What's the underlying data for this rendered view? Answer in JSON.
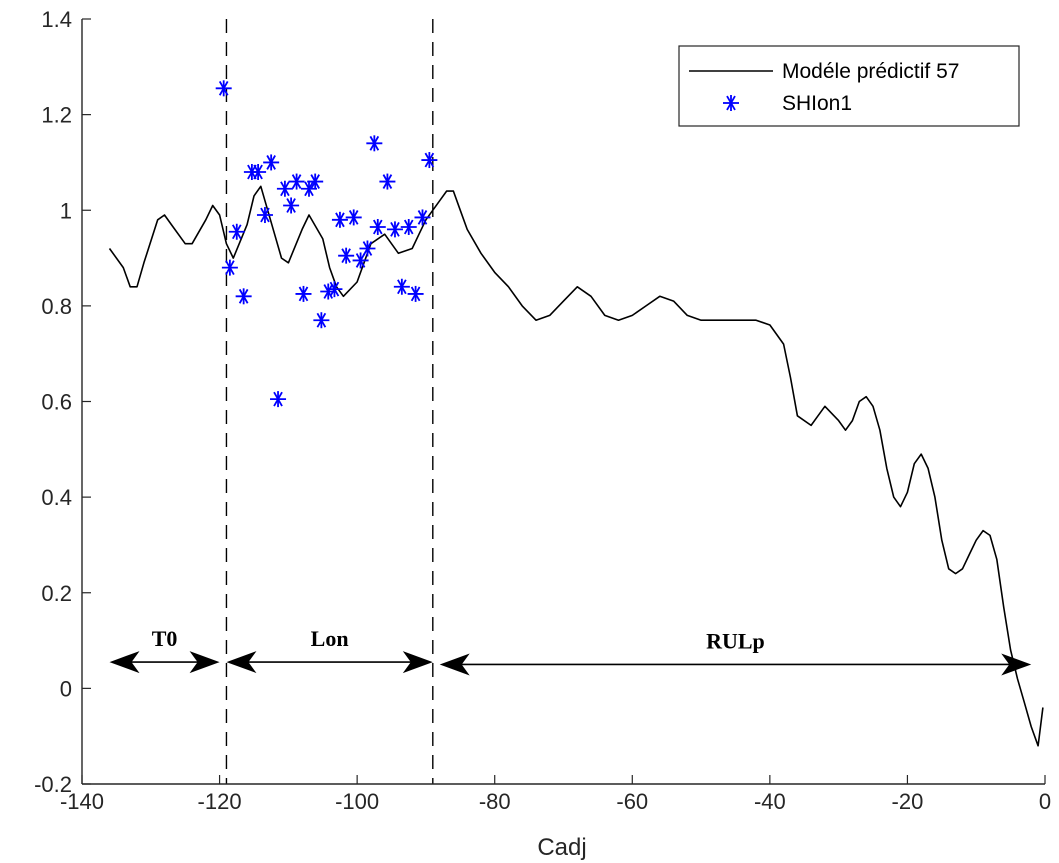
{
  "chart_data": {
    "type": "line",
    "xlabel": "Cadj",
    "ylabel": "",
    "xlim": [
      -140,
      0
    ],
    "ylim": [
      -0.2,
      1.4
    ],
    "x_ticks": [
      "-140",
      "-120",
      "-100",
      "-80",
      "-60",
      "-40",
      "-20",
      "0"
    ],
    "y_ticks": [
      "-0.2",
      "0",
      "0.2",
      "0.4",
      "0.6",
      "0.8",
      "1",
      "1.2",
      "1.4"
    ],
    "grid": false,
    "legend_position": "top-right",
    "series": [
      {
        "name": "Modéle prédictif 57",
        "style": "line",
        "color": "#000000",
        "x": [
          -136,
          -134,
          -133,
          -132,
          -131,
          -129,
          -128,
          -127,
          -125,
          -124,
          -122,
          -121,
          -120,
          -119,
          -118,
          -116,
          -115,
          -114,
          -112,
          -111,
          -110,
          -108,
          -107,
          -105,
          -104,
          -103,
          -102,
          -100,
          -99,
          -98,
          -96,
          -95,
          -94,
          -92,
          -91,
          -90,
          -88,
          -87,
          -86,
          -85,
          -84,
          -82,
          -80,
          -78,
          -76,
          -74,
          -72,
          -70,
          -68,
          -66,
          -64,
          -62,
          -60,
          -58,
          -56,
          -54,
          -52,
          -50,
          -48,
          -46,
          -44,
          -42,
          -40,
          -38,
          -37,
          -36,
          -34,
          -33,
          -32,
          -30,
          -29,
          -28,
          -27,
          -26,
          -25,
          -24,
          -23,
          -22,
          -21,
          -20,
          -19,
          -18,
          -17,
          -16,
          -15,
          -14,
          -13,
          -12,
          -11,
          -10,
          -9,
          -8,
          -7,
          -6,
          -5,
          -4,
          -3,
          -2,
          -1,
          -0.3
        ],
        "y": [
          0.92,
          0.88,
          0.84,
          0.84,
          0.89,
          0.98,
          0.99,
          0.97,
          0.93,
          0.93,
          0.98,
          1.01,
          0.99,
          0.93,
          0.9,
          0.97,
          1.03,
          1.05,
          0.95,
          0.9,
          0.89,
          0.96,
          0.99,
          0.94,
          0.88,
          0.84,
          0.82,
          0.85,
          0.89,
          0.93,
          0.95,
          0.93,
          0.91,
          0.92,
          0.95,
          0.98,
          1.02,
          1.04,
          1.04,
          1.0,
          0.96,
          0.91,
          0.87,
          0.84,
          0.8,
          0.77,
          0.78,
          0.81,
          0.84,
          0.82,
          0.78,
          0.77,
          0.78,
          0.8,
          0.82,
          0.81,
          0.78,
          0.77,
          0.77,
          0.77,
          0.77,
          0.77,
          0.76,
          0.72,
          0.65,
          0.57,
          0.55,
          0.57,
          0.59,
          0.56,
          0.54,
          0.56,
          0.6,
          0.61,
          0.59,
          0.54,
          0.46,
          0.4,
          0.38,
          0.41,
          0.47,
          0.49,
          0.46,
          0.4,
          0.31,
          0.25,
          0.24,
          0.25,
          0.28,
          0.31,
          0.33,
          0.32,
          0.27,
          0.17,
          0.08,
          0.02,
          -0.03,
          -0.08,
          -0.12,
          -0.04
        ]
      },
      {
        "name": "SHIon1",
        "style": "markers",
        "marker": "asterisk",
        "color": "#0000ff",
        "x": [
          -119.4,
          -118.5,
          -117.5,
          -116.5,
          -115.3,
          -114.4,
          -113.4,
          -112.5,
          -111.5,
          -110.5,
          -109.6,
          -108.8,
          -107.8,
          -107.0,
          -106.1,
          -105.2,
          -104.2,
          -103.3,
          -102.5,
          -101.6,
          -100.5,
          -99.5,
          -98.5,
          -97.5,
          -97.0,
          -95.6,
          -94.5,
          -93.5,
          -92.5,
          -91.5,
          -90.5,
          -89.5
        ],
        "y": [
          1.255,
          0.88,
          0.955,
          0.82,
          1.08,
          1.08,
          0.99,
          1.1,
          0.605,
          1.045,
          1.01,
          1.06,
          0.825,
          1.045,
          1.06,
          0.77,
          0.83,
          0.835,
          0.98,
          0.905,
          0.985,
          0.895,
          0.92,
          1.14,
          0.965,
          1.06,
          0.96,
          0.84,
          0.965,
          0.825,
          0.985,
          1.105
        ]
      }
    ],
    "vlines": [
      -119,
      -89
    ],
    "spans": [
      {
        "label": "T0",
        "from": -136,
        "to": -120,
        "y": 0.055
      },
      {
        "label": "Lon",
        "from": -119,
        "to": -89,
        "y": 0.055
      },
      {
        "label": "RULp",
        "from": -88,
        "to": -2,
        "y": 0.05
      }
    ]
  }
}
